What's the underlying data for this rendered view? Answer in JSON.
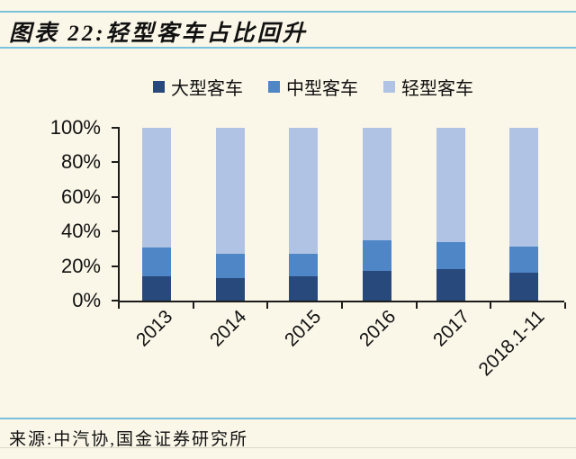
{
  "header": {
    "title": "图表 22:轻型客车占比回升"
  },
  "footer": {
    "source": "来源:中汽协,国金证券研究所"
  },
  "colors": {
    "background": "#FBF7E8",
    "rule_blue": "#79C2DE",
    "axis": "#1C1C1A",
    "bar_dark": "#28497B",
    "bar_medium": "#4F86C5",
    "bar_light": "#B1C3E4"
  },
  "chart_data": {
    "type": "bar",
    "stacked": true,
    "percent_stacked": true,
    "title": "轻型客车占比回升",
    "xlabel": "",
    "ylabel": "",
    "ylim": [
      0,
      100
    ],
    "grid": false,
    "legend_position": "top",
    "categories": [
      "2013",
      "2014",
      "2015",
      "2016",
      "2017",
      "2018.1-11"
    ],
    "y_tick_labels": [
      "0%",
      "20%",
      "40%",
      "60%",
      "80%",
      "100%"
    ],
    "series": [
      {
        "name": "大型客车",
        "key": "large-bus",
        "color": "#28497B",
        "values": [
          14,
          13,
          14,
          17,
          18,
          16
        ]
      },
      {
        "name": "中型客车",
        "key": "medium-bus",
        "color": "#4F86C5",
        "values": [
          17,
          14,
          13,
          18,
          16,
          15
        ]
      },
      {
        "name": "轻型客车",
        "key": "light-bus",
        "color": "#B1C3E4",
        "values": [
          69,
          73,
          73,
          65,
          66,
          69
        ]
      }
    ]
  }
}
